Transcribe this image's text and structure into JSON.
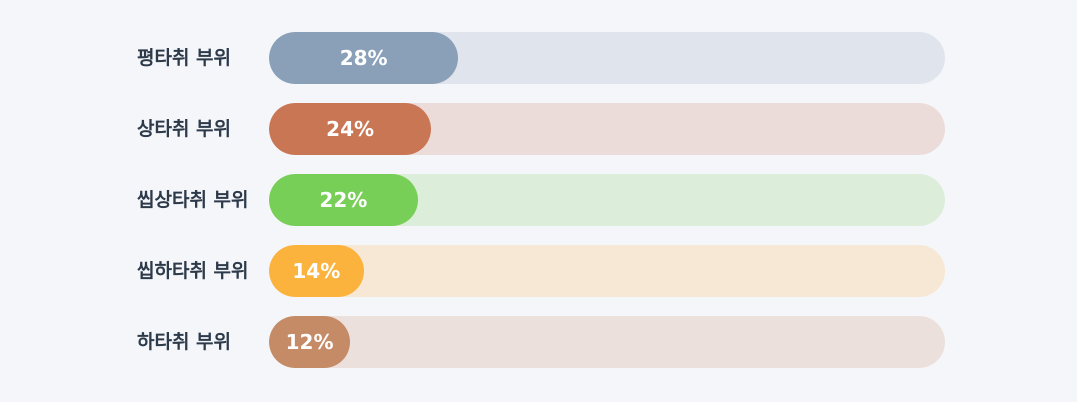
{
  "chart_data": {
    "type": "bar",
    "orientation": "horizontal",
    "categories": [
      "평타취 부위",
      "상타취 부위",
      "씹상타취 부위",
      "씹하타취 부위",
      "하타취 부위"
    ],
    "values": [
      28,
      24,
      22,
      14,
      12
    ],
    "value_labels": [
      "28%",
      "24%",
      "22%",
      "14%",
      "12%"
    ],
    "colors": [
      "#8aa0b8",
      "#c97654",
      "#77cf58",
      "#fbb33e",
      "#c48b66"
    ],
    "xlim": [
      0,
      100
    ]
  }
}
